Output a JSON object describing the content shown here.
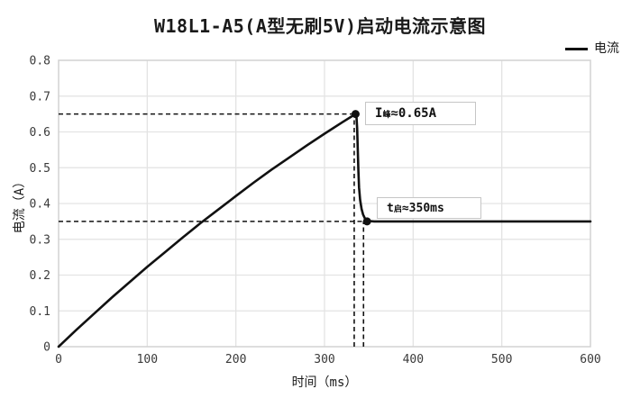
{
  "title": {
    "text": "W18L1-A5(A型无刷5V)启动电流示意图"
  },
  "legend": {
    "label": "电流"
  },
  "annotations": [
    {
      "name": "peak",
      "pre": "I",
      "sub": "峰",
      "post": "≈0.65A",
      "label": "I峰≈0.65A"
    },
    {
      "name": "settle",
      "pre": "t",
      "sub": "启",
      "post": "≈350ms",
      "label": "t启≈350ms"
    }
  ],
  "chart_data": {
    "type": "line",
    "title": "W18L1-A5(A型无刷5V)启动电流示意图",
    "xlabel": "时间（ms）",
    "ylabel": "电流（A）",
    "xlim": [
      0,
      600
    ],
    "ylim": [
      0,
      0.8
    ],
    "x_ticks": [
      0,
      100,
      200,
      300,
      400,
      500,
      600
    ],
    "x_tick_labels": [
      "0",
      "100",
      "200",
      "300",
      "400",
      "500",
      "600"
    ],
    "y_ticks": [
      0,
      0.1,
      0.2,
      0.3,
      0.4,
      0.5,
      0.6,
      0.7,
      0.8
    ],
    "y_tick_labels": [
      "0",
      "0.1",
      "0.2",
      "0.3",
      "0.4",
      "0.5",
      "0.6",
      "0.7",
      "0.8"
    ],
    "grid": true,
    "legend_position": "top-right",
    "legend_entries": [
      "电流"
    ],
    "series": [
      {
        "name": "电流",
        "color": "#111111",
        "points": [
          [
            0,
            0
          ],
          [
            20,
            0.047
          ],
          [
            40,
            0.092
          ],
          [
            60,
            0.137
          ],
          [
            80,
            0.18
          ],
          [
            100,
            0.223
          ],
          [
            120,
            0.264
          ],
          [
            140,
            0.305
          ],
          [
            160,
            0.345
          ],
          [
            180,
            0.383
          ],
          [
            200,
            0.421
          ],
          [
            220,
            0.458
          ],
          [
            240,
            0.494
          ],
          [
            260,
            0.528
          ],
          [
            280,
            0.562
          ],
          [
            300,
            0.595
          ],
          [
            320,
            0.627
          ],
          [
            335,
            0.65
          ],
          [
            336,
            0.645
          ],
          [
            336.8,
            0.61
          ],
          [
            337.5,
            0.55
          ],
          [
            338.2,
            0.49
          ],
          [
            339,
            0.445
          ],
          [
            340.2,
            0.41
          ],
          [
            341.8,
            0.385
          ],
          [
            343.5,
            0.369
          ],
          [
            345.5,
            0.359
          ],
          [
            348,
            0.353
          ],
          [
            351,
            0.351
          ],
          [
            356,
            0.35
          ],
          [
            380,
            0.35
          ],
          [
            420,
            0.35
          ],
          [
            460,
            0.35
          ],
          [
            500,
            0.35
          ],
          [
            550,
            0.35
          ],
          [
            600,
            0.35
          ]
        ]
      }
    ],
    "markers": [
      {
        "name": "peak-marker",
        "t": 335,
        "value": 0.65
      },
      {
        "name": "settle-marker",
        "t": 348,
        "value": 0.35
      }
    ],
    "guides": [
      {
        "type": "h",
        "value": 0.65,
        "from": 0,
        "to": 335
      },
      {
        "type": "h",
        "value": 0.35,
        "from": 0,
        "to": 346
      },
      {
        "type": "v",
        "value": 333.5,
        "from": 0,
        "to": 0.65
      },
      {
        "type": "v",
        "value": 344,
        "from": 0,
        "to": 0.35
      }
    ],
    "key_values": {
      "peak_current_a": 0.65,
      "startup_time_ms": 350,
      "steady_current_a": 0.35
    },
    "colors": {
      "curve": "#111111",
      "grid": "#e3e3e3",
      "border": "#d2d2d2",
      "tick_text": "#3a3a3a",
      "guide": "#111111"
    }
  }
}
